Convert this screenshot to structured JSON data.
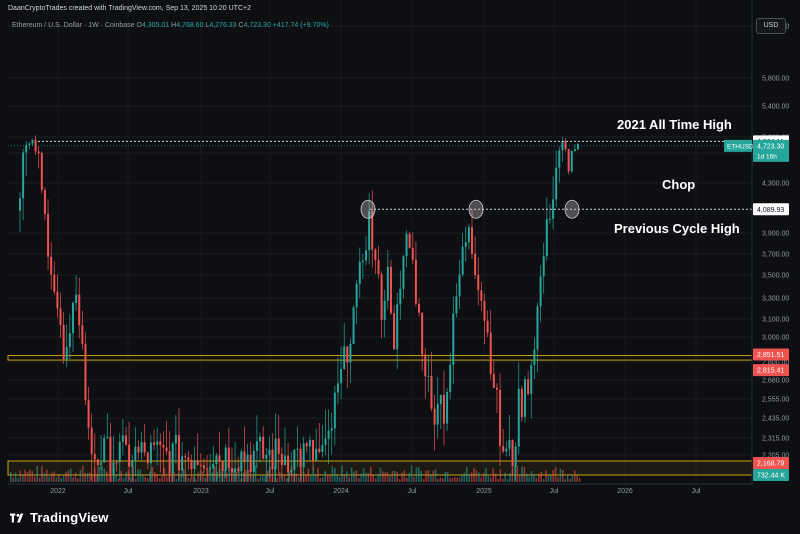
{
  "header": {
    "credit": "DaanCryptoTrades created with TradingView.com, Sep 13, 2025 10:20 UTC+2"
  },
  "symbol": {
    "name": "Ethereum / U.S. Dollar · 1W · Coinbase",
    "o_label": "O",
    "o": "4,305.01",
    "h_label": "H",
    "h": "4,768.60",
    "l_label": "L",
    "l": "4,276.33",
    "c_label": "C",
    "c": "4,723.30",
    "change": "+417.74 (+9.70%)"
  },
  "currency_button": "USD",
  "annotations": {
    "ath": "2021 All Time High",
    "chop": "Chop",
    "prev_cycle": "Previous Cycle High"
  },
  "price_tags": {
    "ath_level": "4,864.11",
    "ethusd_label": "ETHUSD",
    "last_price": "4,723.30",
    "timer": "1d 16h",
    "prev_high": "4,089.93",
    "zone_top": "2,851.51",
    "zone_bottom": "2,815.41",
    "support": "2,168.79",
    "volume": "732.44 K"
  },
  "logo": {
    "text": "TradingView"
  },
  "colors": {
    "up": "#26a69a",
    "down": "#ef5350",
    "zone": "#c8a415",
    "bg": "#0e0f13",
    "tag_green": "#26a69a",
    "tag_red": "#ef5350"
  },
  "chart_data": {
    "type": "candlestick",
    "title": "Ethereum / U.S. Dollar · 1W · Coinbase",
    "y_ticks": [
      6200,
      5800,
      5400,
      5000,
      4500,
      4300,
      3900,
      3700,
      3500,
      3300,
      3100,
      3000,
      2800,
      2680,
      2555,
      2435,
      2315,
      2205
    ],
    "y_tick_labels": [
      "6,200.00",
      "5,800.00",
      "5,400.00",
      "5,000.00",
      "4,500.00",
      "4,300.00",
      "3,900.00",
      "3,700.00",
      "3,500.00",
      "3,300.00",
      "3,100.00",
      "3,000.00",
      "2,800.00",
      "2,680.00",
      "2,555.00",
      "2,435.00",
      "2,315.00",
      "2,205.00"
    ],
    "x_ticks": [
      "2022",
      "Jul",
      "2023",
      "Jul",
      "2024",
      "Jul",
      "2025",
      "Jul",
      "2026",
      "Jul"
    ],
    "levels": {
      "ath": 4864.11,
      "prev_cycle_high": 4089.93,
      "zone_top": 2851.51,
      "zone_bottom": 2815.41,
      "support": 2168.79
    },
    "last_close": 4723.3,
    "series_anchors_weekly_close": [
      [
        0,
        4300
      ],
      [
        2,
        4700
      ],
      [
        4,
        4800
      ],
      [
        6,
        4400
      ],
      [
        8,
        4000
      ],
      [
        10,
        3600
      ],
      [
        12,
        3200
      ],
      [
        14,
        2800
      ],
      [
        16,
        2900
      ],
      [
        18,
        3400
      ],
      [
        20,
        2900
      ],
      [
        22,
        2300
      ],
      [
        24,
        2205
      ],
      [
        26,
        2205
      ],
      [
        28,
        2205
      ],
      [
        30,
        2205
      ],
      [
        40,
        2205
      ],
      [
        60,
        2205
      ],
      [
        80,
        2205
      ],
      [
        98,
        2205
      ],
      [
        100,
        2400
      ],
      [
        104,
        2800
      ],
      [
        108,
        3300
      ],
      [
        110,
        3700
      ],
      [
        112,
        4000
      ],
      [
        114,
        3600
      ],
      [
        116,
        3200
      ],
      [
        118,
        3500
      ],
      [
        120,
        3000
      ],
      [
        122,
        3300
      ],
      [
        124,
        3900
      ],
      [
        126,
        3600
      ],
      [
        128,
        3100
      ],
      [
        130,
        2800
      ],
      [
        132,
        2450
      ],
      [
        134,
        2600
      ],
      [
        136,
        2500
      ],
      [
        138,
        2800
      ],
      [
        140,
        3300
      ],
      [
        142,
        3700
      ],
      [
        144,
        4000
      ],
      [
        146,
        3600
      ],
      [
        148,
        3300
      ],
      [
        150,
        3000
      ],
      [
        152,
        2700
      ],
      [
        154,
        2300
      ],
      [
        156,
        2205
      ],
      [
        158,
        2205
      ],
      [
        160,
        2500
      ],
      [
        162,
        2600
      ],
      [
        164,
        2800
      ],
      [
        166,
        3200
      ],
      [
        168,
        3700
      ],
      [
        170,
        4100
      ],
      [
        172,
        4400
      ],
      [
        174,
        4800
      ],
      [
        176,
        4300
      ],
      [
        178,
        4723
      ]
    ]
  }
}
